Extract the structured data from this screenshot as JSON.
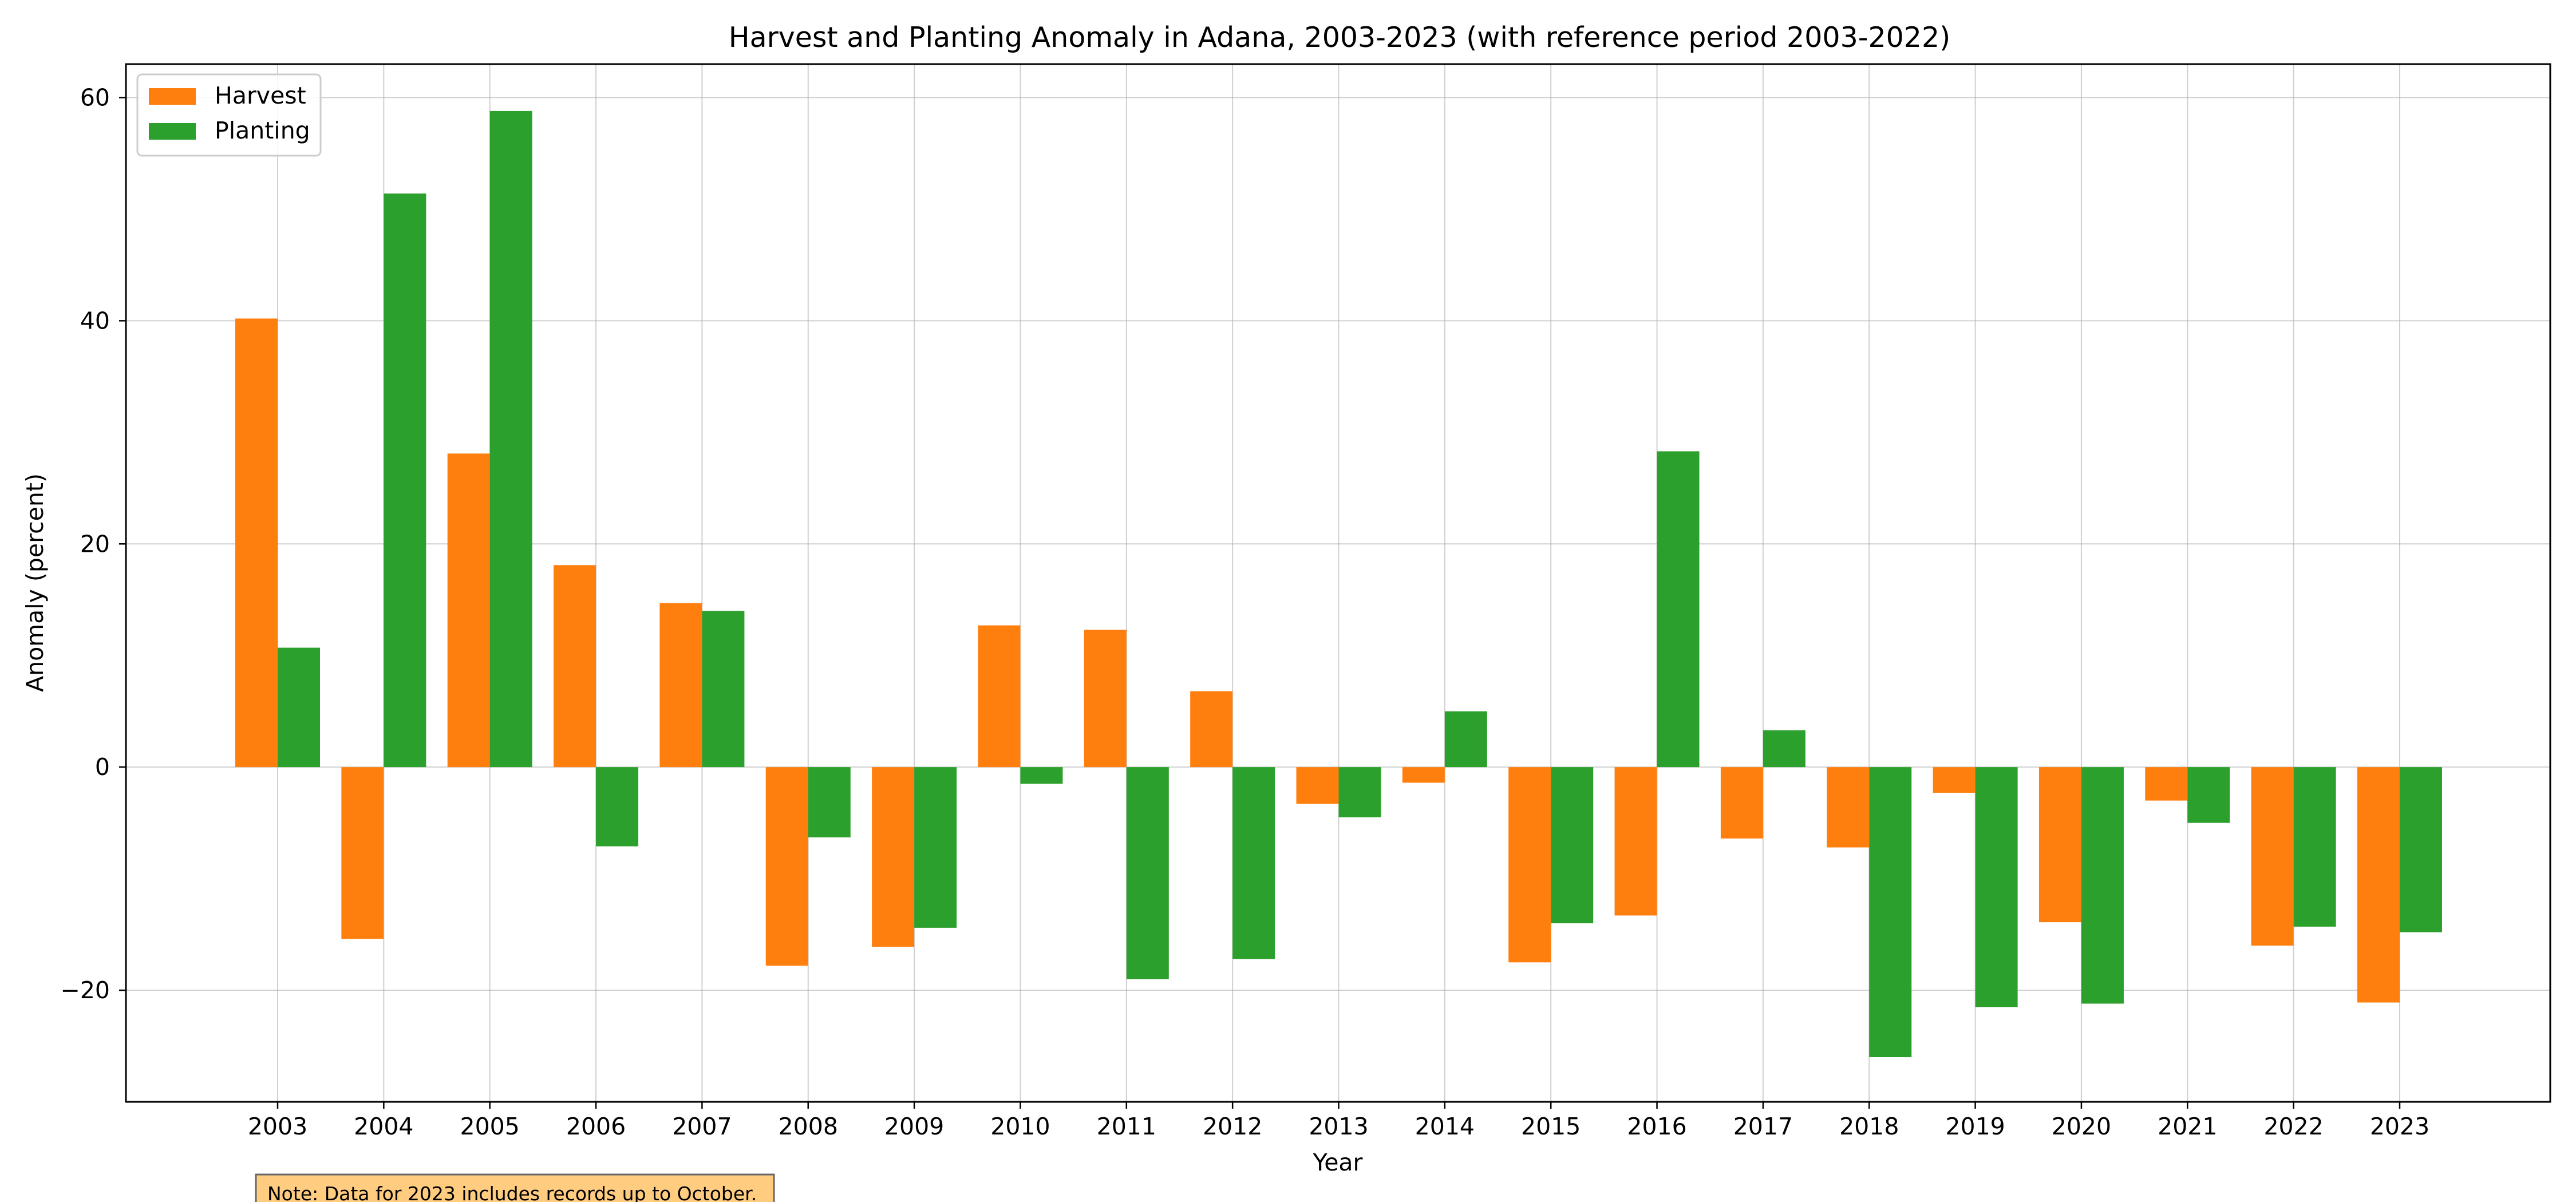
{
  "chart_data": {
    "type": "bar",
    "title": "Harvest and Planting Anomaly in Adana, 2003-2023 (with reference period 2003-2022)",
    "xlabel": "Year",
    "ylabel": "Anomaly (percent)",
    "categories": [
      "2003",
      "2004",
      "2005",
      "2006",
      "2007",
      "2008",
      "2009",
      "2010",
      "2011",
      "2012",
      "2013",
      "2014",
      "2015",
      "2016",
      "2017",
      "2018",
      "2019",
      "2020",
      "2021",
      "2022",
      "2023"
    ],
    "series": [
      {
        "name": "Harvest",
        "color": "#ff7f0e",
        "values": [
          40.2,
          -15.4,
          28.1,
          18.1,
          14.7,
          -17.8,
          -16.1,
          12.7,
          12.3,
          6.8,
          -3.3,
          -1.4,
          -17.5,
          -13.3,
          -6.4,
          -7.2,
          -2.3,
          -13.9,
          -3.0,
          -16.0,
          -21.1
        ]
      },
      {
        "name": "Planting",
        "color": "#2ca02c",
        "values": [
          10.7,
          51.4,
          58.8,
          -7.1,
          14.0,
          -6.3,
          -14.4,
          -1.5,
          -19.0,
          -17.2,
          -4.5,
          5.0,
          -14.0,
          28.3,
          3.3,
          -26.0,
          -21.5,
          -21.2,
          -5.0,
          -14.3,
          -14.8
        ]
      }
    ],
    "ylim": [
      -30,
      63
    ],
    "yticks": [
      -20,
      0,
      20,
      40,
      60
    ],
    "ytick_labels": [
      "−20",
      "0",
      "20",
      "40",
      "60"
    ],
    "grid": true,
    "legend_position": "top-left",
    "note": "Note: Data for 2023 includes records up to October.",
    "note_color": "#ffcc80"
  }
}
